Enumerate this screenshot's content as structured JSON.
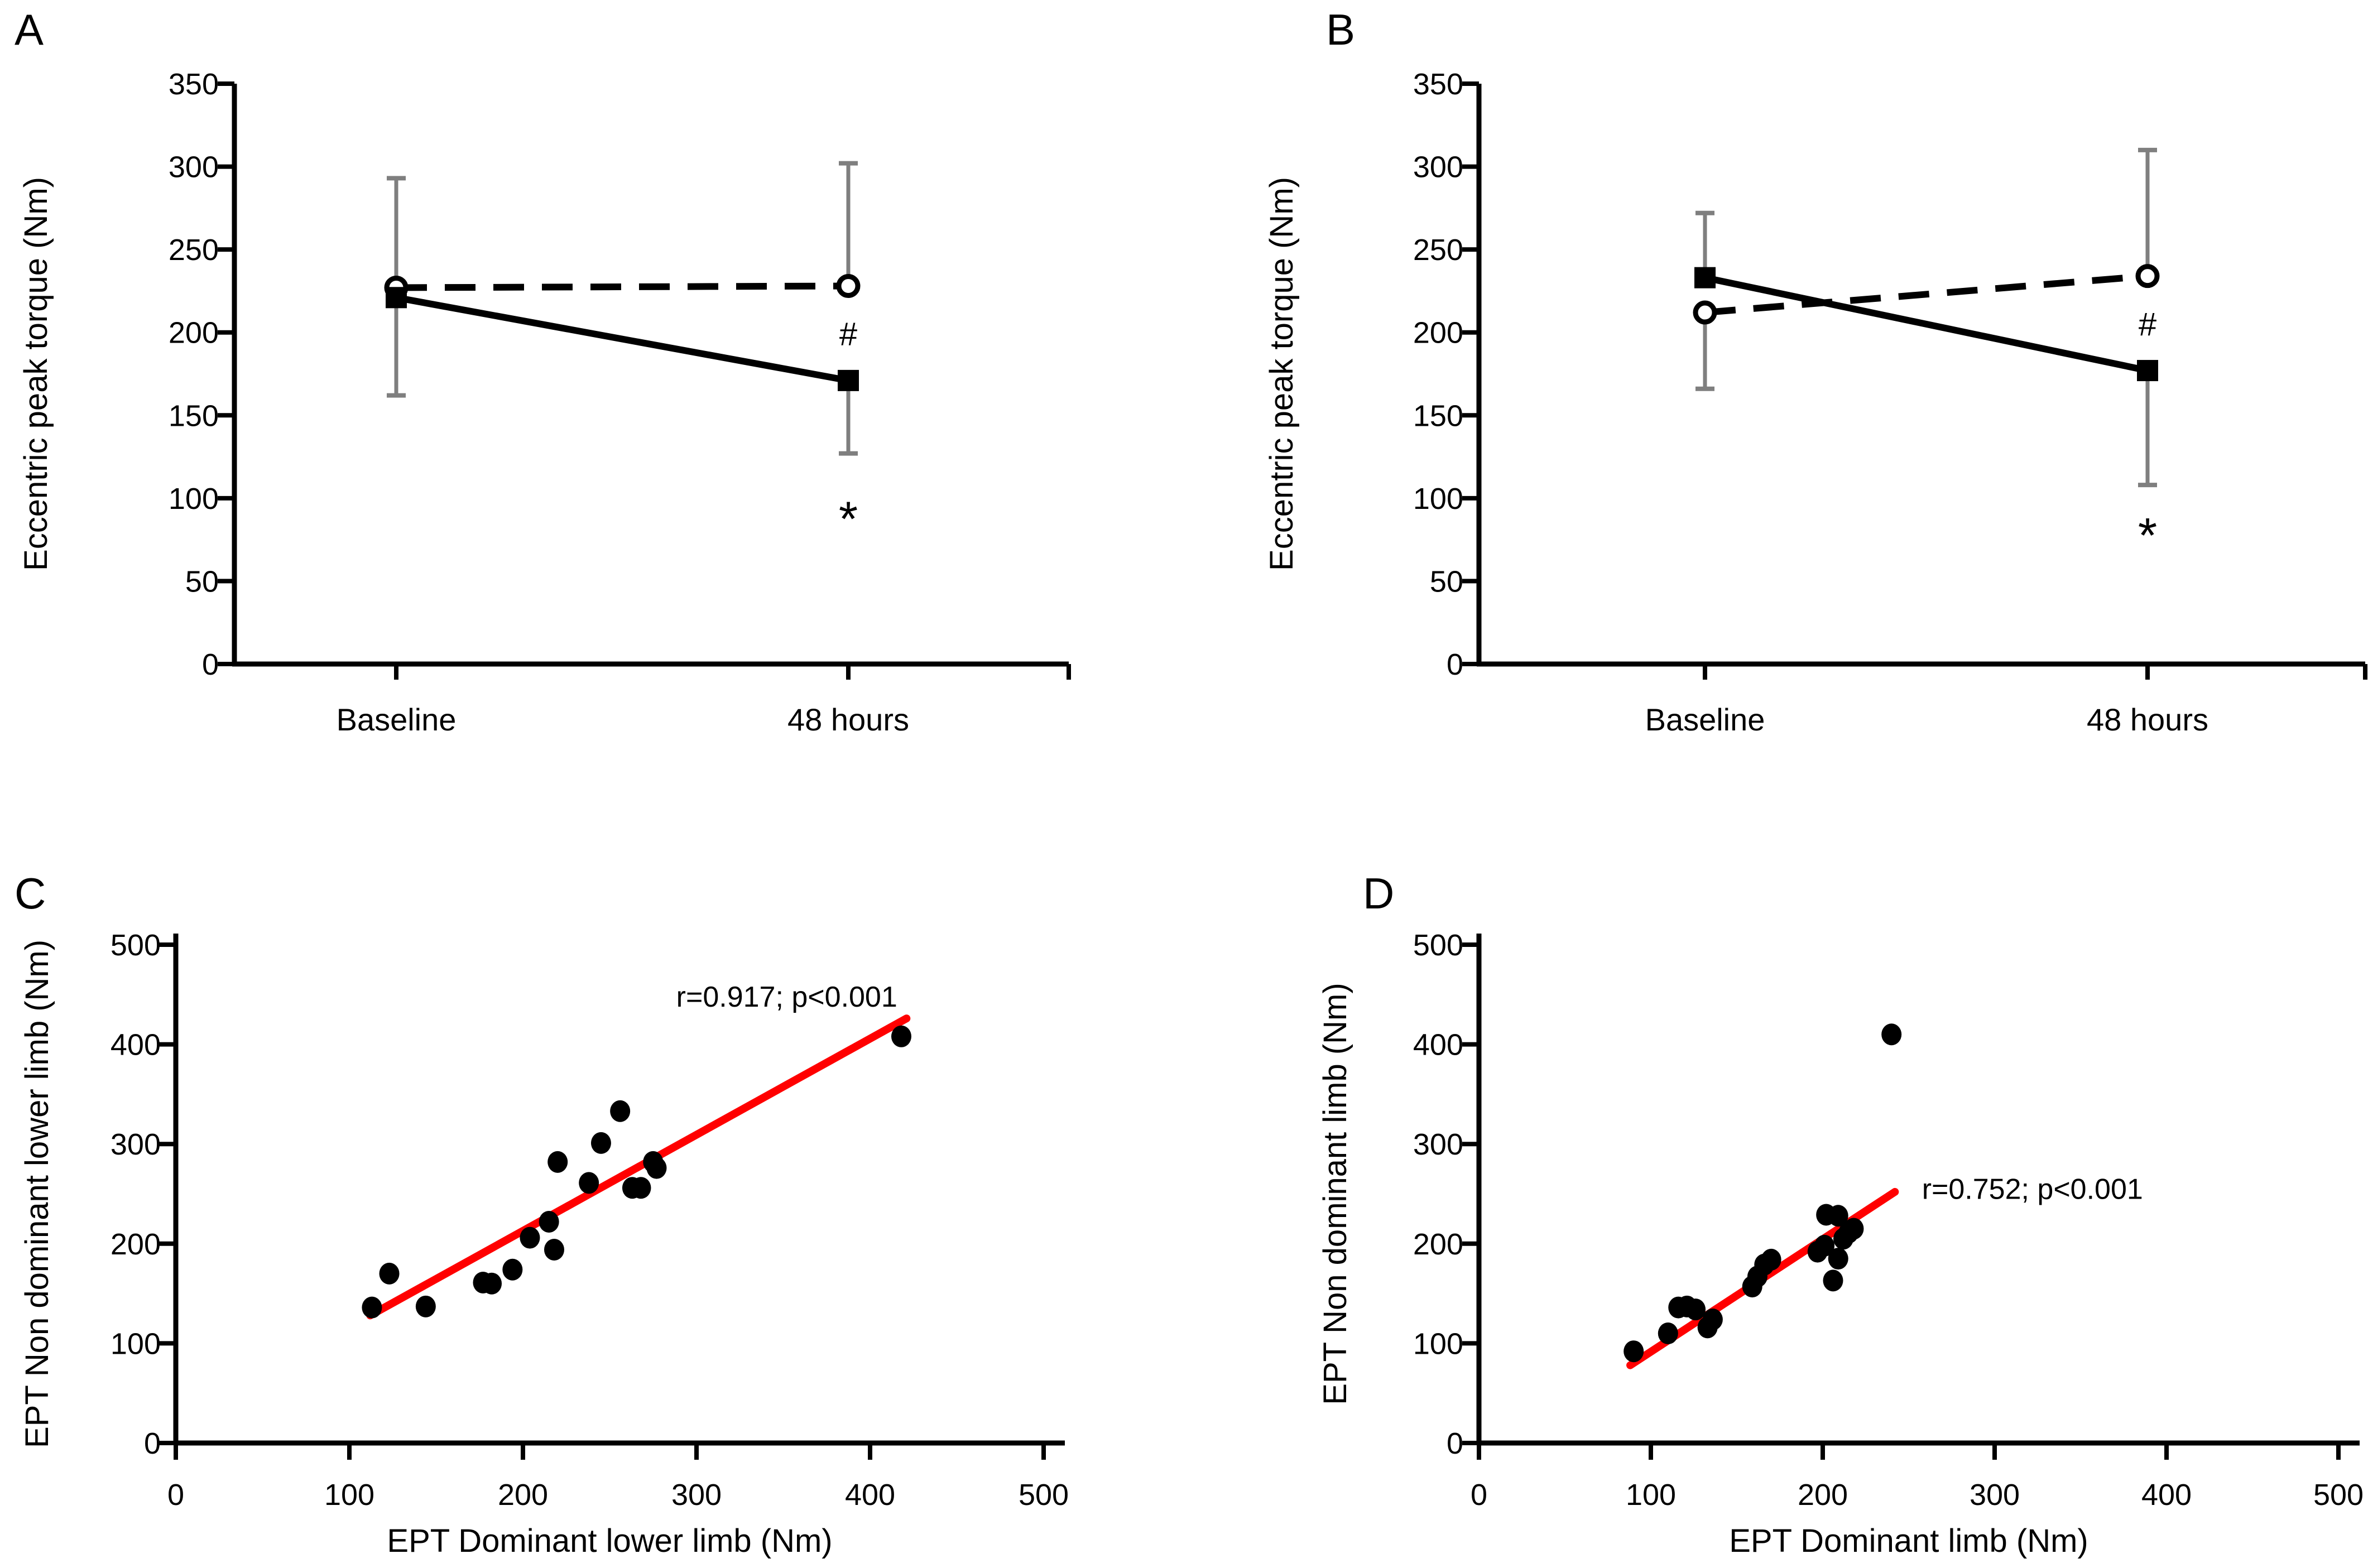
{
  "figure": {
    "background": "#ffffff",
    "axis_color": "#000000",
    "error_bar_color": "#7f7f7f",
    "fit_line_color": "#ff0000",
    "marker_color": "#000000"
  },
  "chart_data": [
    {
      "panel_label": "A",
      "type": "line",
      "ylabel": "Eccentric peak torque (Nm)",
      "ylim": [
        0,
        350
      ],
      "ytick_step": 50,
      "categories": [
        "Baseline",
        "48 hours"
      ],
      "series": [
        {
          "name": "open-circle-dashed-series",
          "marker": "open-circle",
          "line_style": "dashed",
          "values": [
            227,
            228
          ],
          "err_upper": [
            293,
            302
          ],
          "err_lower": [
            null,
            null
          ]
        },
        {
          "name": "filled-square-solid-series",
          "marker": "filled-square",
          "line_style": "solid",
          "values": [
            221,
            171
          ],
          "err_upper": [
            null,
            null
          ],
          "err_lower": [
            162,
            127
          ]
        }
      ],
      "annotations": [
        {
          "text": "#",
          "category_index": 1,
          "value": 199
        },
        {
          "text": "*",
          "category_index": 1,
          "value": 97
        }
      ]
    },
    {
      "panel_label": "B",
      "type": "line",
      "ylabel": "Eccentric peak torque (Nm)",
      "ylim": [
        0,
        350
      ],
      "ytick_step": 50,
      "categories": [
        "Baseline",
        "48 hours"
      ],
      "series": [
        {
          "name": "open-circle-dashed-series",
          "marker": "open-circle",
          "line_style": "dashed",
          "values": [
            212,
            234
          ],
          "err_upper": [
            null,
            310
          ],
          "err_lower": [
            166,
            null
          ]
        },
        {
          "name": "filled-square-solid-series",
          "marker": "filled-square",
          "line_style": "solid",
          "values": [
            233,
            177
          ],
          "err_upper": [
            272,
            null
          ],
          "err_lower": [
            null,
            108
          ]
        }
      ],
      "annotations": [
        {
          "text": "#",
          "category_index": 1,
          "value": 205
        },
        {
          "text": "*",
          "category_index": 1,
          "value": 87
        }
      ]
    },
    {
      "panel_label": "C",
      "type": "scatter",
      "xlabel": "EPT Dominant lower limb (Nm)",
      "ylabel": "EPT Non dominant lower limb (Nm)",
      "xlim": [
        0,
        500
      ],
      "ylim": [
        0,
        500
      ],
      "tick_step": 100,
      "points": [
        [
          113,
          136
        ],
        [
          123,
          170
        ],
        [
          144,
          137
        ],
        [
          177,
          161
        ],
        [
          182,
          160
        ],
        [
          194,
          174
        ],
        [
          204,
          206
        ],
        [
          215,
          222
        ],
        [
          218,
          194
        ],
        [
          220,
          282
        ],
        [
          238,
          261
        ],
        [
          245,
          301
        ],
        [
          256,
          333
        ],
        [
          263,
          256
        ],
        [
          268,
          256
        ],
        [
          275,
          282
        ],
        [
          277,
          276
        ],
        [
          418,
          408
        ]
      ],
      "fit_line": {
        "x1": 112,
        "y1": 128,
        "x2": 421,
        "y2": 426
      },
      "annotation": {
        "text": "r=0.917; p<0.001",
        "x": 352,
        "y": 448
      }
    },
    {
      "panel_label": "D",
      "type": "scatter",
      "xlabel": "EPT Dominant limb (Nm)",
      "ylabel": "EPT Non dominant limb (Nm)",
      "xlim": [
        0,
        500
      ],
      "ylim": [
        0,
        500
      ],
      "tick_step": 100,
      "points": [
        [
          90,
          92
        ],
        [
          110,
          110
        ],
        [
          116,
          136
        ],
        [
          121,
          137
        ],
        [
          126,
          134
        ],
        [
          133,
          116
        ],
        [
          136,
          124
        ],
        [
          159,
          157
        ],
        [
          162,
          167
        ],
        [
          166,
          179
        ],
        [
          170,
          184
        ],
        [
          197,
          192
        ],
        [
          201,
          198
        ],
        [
          206,
          163
        ],
        [
          209,
          185
        ],
        [
          212,
          205
        ],
        [
          215,
          211
        ],
        [
          218,
          215
        ],
        [
          202,
          229
        ],
        [
          209,
          228
        ],
        [
          240,
          410
        ]
      ],
      "fit_line": {
        "x1": 88,
        "y1": 78,
        "x2": 242,
        "y2": 252
      },
      "annotation": {
        "text": "r=0.752; p<0.001",
        "x": 322,
        "y": 255
      }
    }
  ]
}
